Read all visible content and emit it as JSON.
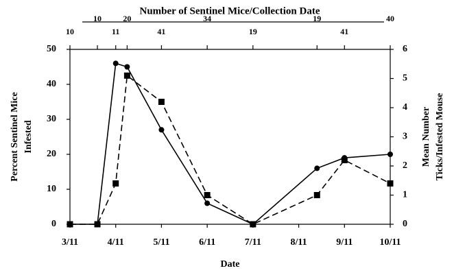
{
  "chart_data": {
    "type": "line",
    "top_title": "Number of Sentinel Mice/Collection Date",
    "top_counts": [
      10,
      10,
      11,
      20,
      41,
      34,
      19,
      19,
      41,
      40
    ],
    "xlabel": "Date",
    "ylabel": [
      "Percent Sentinel Mice",
      "Infested"
    ],
    "y2label": [
      "Mean Number",
      "Ticks/Infested Mouse"
    ],
    "x": [
      0,
      0.6,
      1.0,
      1.25,
      2.0,
      3.0,
      4.0,
      5.4,
      6.0,
      7.0
    ],
    "xlim": [
      0,
      7
    ],
    "xticks": [
      {
        "value": 0,
        "label": "3/11"
      },
      {
        "value": 1,
        "label": "4/11"
      },
      {
        "value": 2,
        "label": "5/11"
      },
      {
        "value": 3,
        "label": "6/11"
      },
      {
        "value": 4,
        "label": "7/11"
      },
      {
        "value": 5,
        "label": "8/11"
      },
      {
        "value": 6,
        "label": "9/11"
      },
      {
        "value": 7,
        "label": "10/11"
      }
    ],
    "ylim": [
      0,
      50
    ],
    "yticks": [
      0,
      10,
      20,
      30,
      40,
      50
    ],
    "y2lim": [
      0,
      6
    ],
    "y2ticks": [
      0,
      1,
      2,
      3,
      4,
      5,
      6
    ],
    "series": [
      {
        "color": "#000000",
        "marker": "circle",
        "dash": false,
        "values": [
          0,
          0,
          46,
          45,
          27,
          6,
          0,
          16,
          19,
          20
        ]
      },
      {
        "color": "#000000",
        "marker": "square",
        "dash": true,
        "axis": "y2",
        "values": [
          0,
          0,
          1.4,
          5.1,
          4.2,
          1.0,
          0,
          1.0,
          2.2,
          1.4
        ]
      }
    ]
  }
}
